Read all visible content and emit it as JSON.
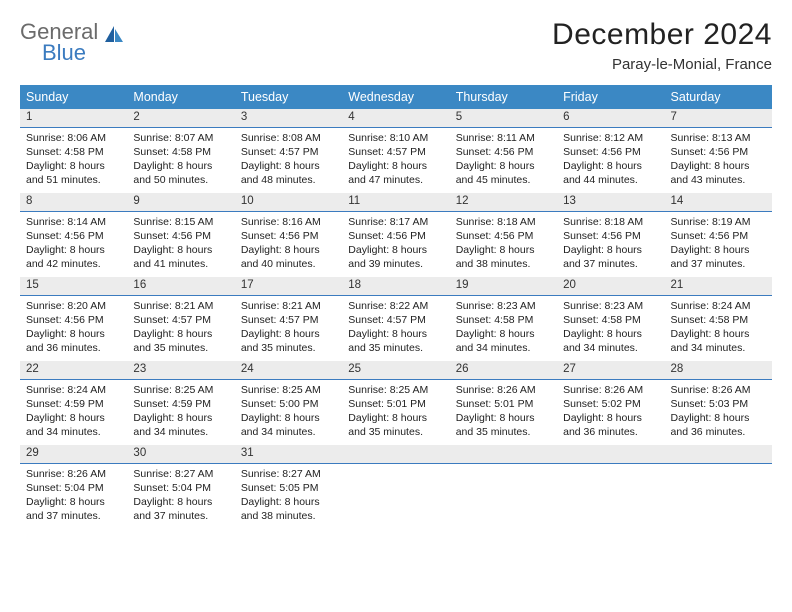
{
  "brand": {
    "word1": "General",
    "word2": "Blue",
    "general_color": "#6b6b6b",
    "blue_color": "#3b7bbf"
  },
  "title": "December 2024",
  "location": "Paray-le-Monial, France",
  "header_bg": "#3b88c4",
  "header_text_color": "#ffffff",
  "daynum_bg": "#ececec",
  "daynum_border": "#3b7bbf",
  "weekdays": [
    "Sunday",
    "Monday",
    "Tuesday",
    "Wednesday",
    "Thursday",
    "Friday",
    "Saturday"
  ],
  "columns": 7,
  "rows": 5,
  "days": [
    {
      "n": "1",
      "sunrise": "8:06 AM",
      "sunset": "4:58 PM",
      "daylight": "8 hours and 51 minutes."
    },
    {
      "n": "2",
      "sunrise": "8:07 AM",
      "sunset": "4:58 PM",
      "daylight": "8 hours and 50 minutes."
    },
    {
      "n": "3",
      "sunrise": "8:08 AM",
      "sunset": "4:57 PM",
      "daylight": "8 hours and 48 minutes."
    },
    {
      "n": "4",
      "sunrise": "8:10 AM",
      "sunset": "4:57 PM",
      "daylight": "8 hours and 47 minutes."
    },
    {
      "n": "5",
      "sunrise": "8:11 AM",
      "sunset": "4:56 PM",
      "daylight": "8 hours and 45 minutes."
    },
    {
      "n": "6",
      "sunrise": "8:12 AM",
      "sunset": "4:56 PM",
      "daylight": "8 hours and 44 minutes."
    },
    {
      "n": "7",
      "sunrise": "8:13 AM",
      "sunset": "4:56 PM",
      "daylight": "8 hours and 43 minutes."
    },
    {
      "n": "8",
      "sunrise": "8:14 AM",
      "sunset": "4:56 PM",
      "daylight": "8 hours and 42 minutes."
    },
    {
      "n": "9",
      "sunrise": "8:15 AM",
      "sunset": "4:56 PM",
      "daylight": "8 hours and 41 minutes."
    },
    {
      "n": "10",
      "sunrise": "8:16 AM",
      "sunset": "4:56 PM",
      "daylight": "8 hours and 40 minutes."
    },
    {
      "n": "11",
      "sunrise": "8:17 AM",
      "sunset": "4:56 PM",
      "daylight": "8 hours and 39 minutes."
    },
    {
      "n": "12",
      "sunrise": "8:18 AM",
      "sunset": "4:56 PM",
      "daylight": "8 hours and 38 minutes."
    },
    {
      "n": "13",
      "sunrise": "8:18 AM",
      "sunset": "4:56 PM",
      "daylight": "8 hours and 37 minutes."
    },
    {
      "n": "14",
      "sunrise": "8:19 AM",
      "sunset": "4:56 PM",
      "daylight": "8 hours and 37 minutes."
    },
    {
      "n": "15",
      "sunrise": "8:20 AM",
      "sunset": "4:56 PM",
      "daylight": "8 hours and 36 minutes."
    },
    {
      "n": "16",
      "sunrise": "8:21 AM",
      "sunset": "4:57 PM",
      "daylight": "8 hours and 35 minutes."
    },
    {
      "n": "17",
      "sunrise": "8:21 AM",
      "sunset": "4:57 PM",
      "daylight": "8 hours and 35 minutes."
    },
    {
      "n": "18",
      "sunrise": "8:22 AM",
      "sunset": "4:57 PM",
      "daylight": "8 hours and 35 minutes."
    },
    {
      "n": "19",
      "sunrise": "8:23 AM",
      "sunset": "4:58 PM",
      "daylight": "8 hours and 34 minutes."
    },
    {
      "n": "20",
      "sunrise": "8:23 AM",
      "sunset": "4:58 PM",
      "daylight": "8 hours and 34 minutes."
    },
    {
      "n": "21",
      "sunrise": "8:24 AM",
      "sunset": "4:58 PM",
      "daylight": "8 hours and 34 minutes."
    },
    {
      "n": "22",
      "sunrise": "8:24 AM",
      "sunset": "4:59 PM",
      "daylight": "8 hours and 34 minutes."
    },
    {
      "n": "23",
      "sunrise": "8:25 AM",
      "sunset": "4:59 PM",
      "daylight": "8 hours and 34 minutes."
    },
    {
      "n": "24",
      "sunrise": "8:25 AM",
      "sunset": "5:00 PM",
      "daylight": "8 hours and 34 minutes."
    },
    {
      "n": "25",
      "sunrise": "8:25 AM",
      "sunset": "5:01 PM",
      "daylight": "8 hours and 35 minutes."
    },
    {
      "n": "26",
      "sunrise": "8:26 AM",
      "sunset": "5:01 PM",
      "daylight": "8 hours and 35 minutes."
    },
    {
      "n": "27",
      "sunrise": "8:26 AM",
      "sunset": "5:02 PM",
      "daylight": "8 hours and 36 minutes."
    },
    {
      "n": "28",
      "sunrise": "8:26 AM",
      "sunset": "5:03 PM",
      "daylight": "8 hours and 36 minutes."
    },
    {
      "n": "29",
      "sunrise": "8:26 AM",
      "sunset": "5:04 PM",
      "daylight": "8 hours and 37 minutes."
    },
    {
      "n": "30",
      "sunrise": "8:27 AM",
      "sunset": "5:04 PM",
      "daylight": "8 hours and 37 minutes."
    },
    {
      "n": "31",
      "sunrise": "8:27 AM",
      "sunset": "5:05 PM",
      "daylight": "8 hours and 38 minutes."
    }
  ],
  "labels": {
    "sunrise": "Sunrise:",
    "sunset": "Sunset:",
    "daylight": "Daylight:"
  }
}
